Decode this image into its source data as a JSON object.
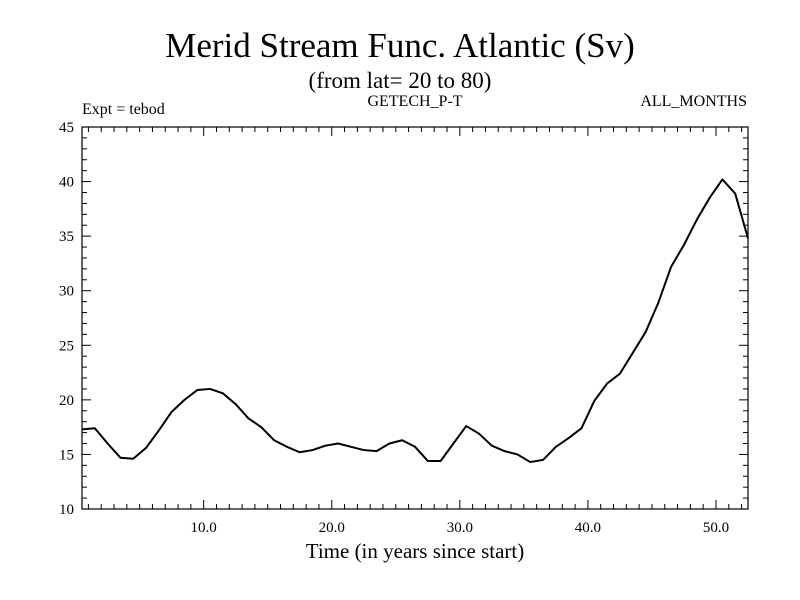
{
  "header": {
    "expt": "Expt = tebod",
    "run": "GETECH_P-T",
    "period": "ALL_MONTHS"
  },
  "chart_data": {
    "type": "line",
    "title": "Merid Stream Func. Atlantic (Sv)",
    "subtitle": "(from lat= 20 to 80)",
    "xlabel": "Time (in years since start)",
    "ylabel": "",
    "xlim": [
      0.5,
      52.5
    ],
    "ylim": [
      10,
      45
    ],
    "xticks": [
      10,
      20,
      30,
      40,
      50
    ],
    "xtick_labels": [
      "10.0",
      "20.0",
      "30.0",
      "40.0",
      "50.0"
    ],
    "xminor_step": 1,
    "yticks": [
      10,
      15,
      20,
      25,
      30,
      35,
      40,
      45
    ],
    "ytick_labels": [
      "10",
      "15",
      "20",
      "25",
      "30",
      "35",
      "40",
      "45"
    ],
    "yminor_step": 1,
    "grid": false,
    "line_color": "#000000",
    "series": [
      {
        "x": [
          0.5,
          1.5,
          2.5,
          3.5,
          4.5,
          5.5,
          6.5,
          7.5,
          8.5,
          9.5,
          10.5,
          11.5,
          12.5,
          13.5,
          14.5,
          15.5,
          16.5,
          17.5,
          18.5,
          19.5,
          20.5,
          21.5,
          22.5,
          23.5,
          24.5,
          25.5,
          26.5,
          27.5,
          28.5,
          29.5,
          30.5,
          31.5,
          32.5,
          33.5,
          34.5,
          35.5,
          36.5,
          37.5,
          38.5,
          39.5,
          40.5,
          41.5,
          42.5,
          43.5,
          44.5,
          45.5,
          46.5,
          47.5,
          48.5,
          49.5,
          50.5,
          51.5,
          52.5
        ],
        "values": [
          17.3,
          17.4,
          16.0,
          14.7,
          14.6,
          15.6,
          17.2,
          18.9,
          20.0,
          20.9,
          21.0,
          20.6,
          19.6,
          18.3,
          17.5,
          16.3,
          15.7,
          15.2,
          15.4,
          15.8,
          16.0,
          15.7,
          15.4,
          15.3,
          16.0,
          16.3,
          15.7,
          14.4,
          14.4,
          16.0,
          17.6,
          16.9,
          15.8,
          15.3,
          15.0,
          14.3,
          14.5,
          15.7,
          16.5,
          17.4,
          19.9,
          21.5,
          22.4,
          24.3,
          26.2,
          28.9,
          32.2,
          34.2,
          36.5,
          38.5,
          40.2,
          38.9,
          34.8
        ]
      }
    ]
  }
}
